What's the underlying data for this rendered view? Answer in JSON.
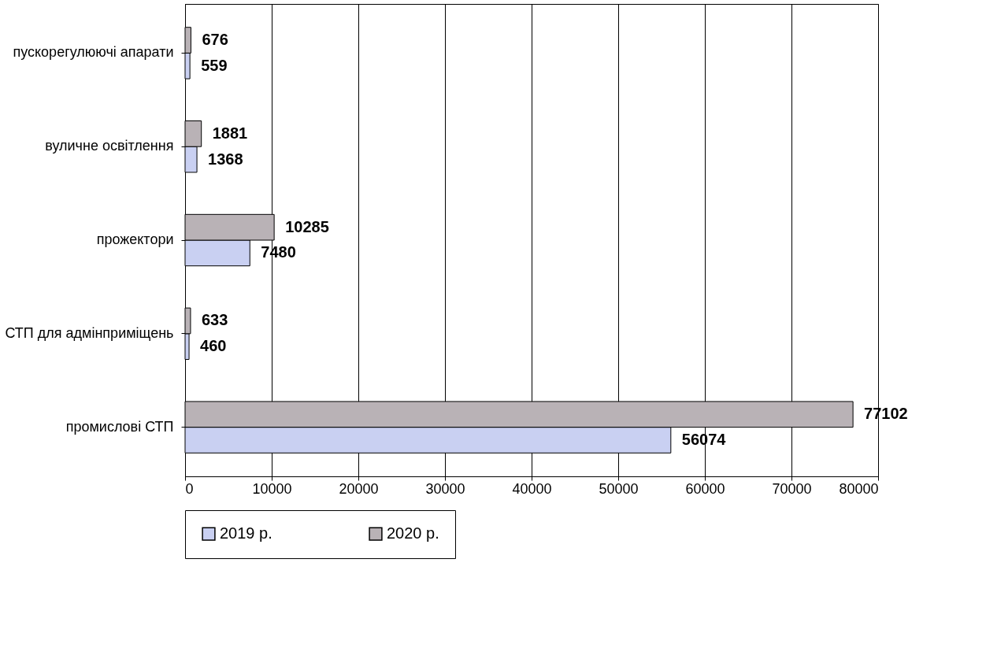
{
  "chart_data": {
    "type": "bar",
    "orientation": "horizontal",
    "categories": [
      "пускорегулюючі апарати",
      "вуличне освітлення",
      "прожектори",
      "СТП для адмінприміщень",
      "промислові СТП"
    ],
    "series": [
      {
        "name": "2019 р.",
        "color": "#c9d0f2",
        "values": [
          559,
          1368,
          7480,
          460,
          56074
        ]
      },
      {
        "name": "2020 р.",
        "color": "#b9b2b6",
        "values": [
          676,
          1881,
          10285,
          633,
          77102
        ]
      }
    ],
    "xlim": [
      0,
      80000
    ],
    "xticks": [
      0,
      10000,
      20000,
      30000,
      40000,
      50000,
      60000,
      70000,
      80000
    ],
    "grid": "x",
    "legend": "bottom",
    "data_labels": true
  }
}
